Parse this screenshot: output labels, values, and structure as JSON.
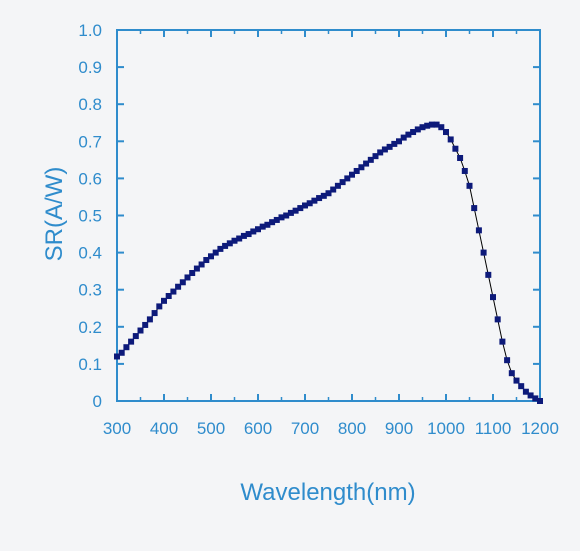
{
  "chart_data": {
    "type": "line",
    "title": "",
    "xlabel": "Wavelength(nm)",
    "ylabel": "SR(A/W)",
    "xlim": [
      300,
      1200
    ],
    "ylim": [
      0,
      1.0
    ],
    "x_ticks": [
      300,
      400,
      500,
      600,
      700,
      800,
      900,
      1000,
      1100,
      1200
    ],
    "y_ticks": [
      0,
      0.1,
      0.2,
      0.3,
      0.4,
      0.5,
      0.6,
      0.7,
      0.8,
      0.9,
      1.0
    ],
    "y_tick_labels": [
      "0",
      "0.1",
      "0.2",
      "0.3",
      "0.4",
      "0.5",
      "0.6",
      "0.7",
      "0.8",
      "0.9",
      "1.0"
    ],
    "grid": false,
    "legend": "none",
    "colors": {
      "axis": "#2f8ccc",
      "marker": "#0d1a7a",
      "line": "#000000",
      "background": "#f4f5f7"
    },
    "series": [
      {
        "marker": "square",
        "x": [
          300,
          310,
          320,
          330,
          340,
          350,
          360,
          370,
          380,
          390,
          400,
          410,
          420,
          430,
          440,
          450,
          460,
          470,
          480,
          490,
          500,
          510,
          520,
          530,
          540,
          550,
          560,
          570,
          580,
          590,
          600,
          610,
          620,
          630,
          640,
          650,
          660,
          670,
          680,
          690,
          700,
          710,
          720,
          730,
          740,
          750,
          760,
          770,
          780,
          790,
          800,
          810,
          820,
          830,
          840,
          850,
          860,
          870,
          880,
          890,
          900,
          910,
          920,
          930,
          940,
          950,
          960,
          970,
          980,
          990,
          1000,
          1010,
          1020,
          1030,
          1040,
          1050,
          1060,
          1070,
          1080,
          1090,
          1100,
          1110,
          1120,
          1130,
          1140,
          1150,
          1160,
          1170,
          1180,
          1190,
          1200
        ],
        "y": [
          0.12,
          0.13,
          0.145,
          0.16,
          0.175,
          0.19,
          0.205,
          0.22,
          0.237,
          0.255,
          0.27,
          0.283,
          0.295,
          0.308,
          0.32,
          0.333,
          0.345,
          0.357,
          0.368,
          0.38,
          0.39,
          0.4,
          0.41,
          0.418,
          0.425,
          0.432,
          0.438,
          0.445,
          0.45,
          0.457,
          0.463,
          0.47,
          0.475,
          0.482,
          0.488,
          0.495,
          0.5,
          0.507,
          0.513,
          0.52,
          0.527,
          0.533,
          0.54,
          0.547,
          0.553,
          0.56,
          0.57,
          0.58,
          0.59,
          0.6,
          0.61,
          0.62,
          0.63,
          0.64,
          0.65,
          0.66,
          0.67,
          0.678,
          0.685,
          0.693,
          0.7,
          0.71,
          0.718,
          0.725,
          0.732,
          0.738,
          0.742,
          0.745,
          0.745,
          0.738,
          0.725,
          0.705,
          0.68,
          0.655,
          0.62,
          0.58,
          0.52,
          0.46,
          0.4,
          0.34,
          0.28,
          0.22,
          0.16,
          0.11,
          0.075,
          0.055,
          0.04,
          0.025,
          0.015,
          0.007,
          0.0
        ]
      }
    ]
  }
}
